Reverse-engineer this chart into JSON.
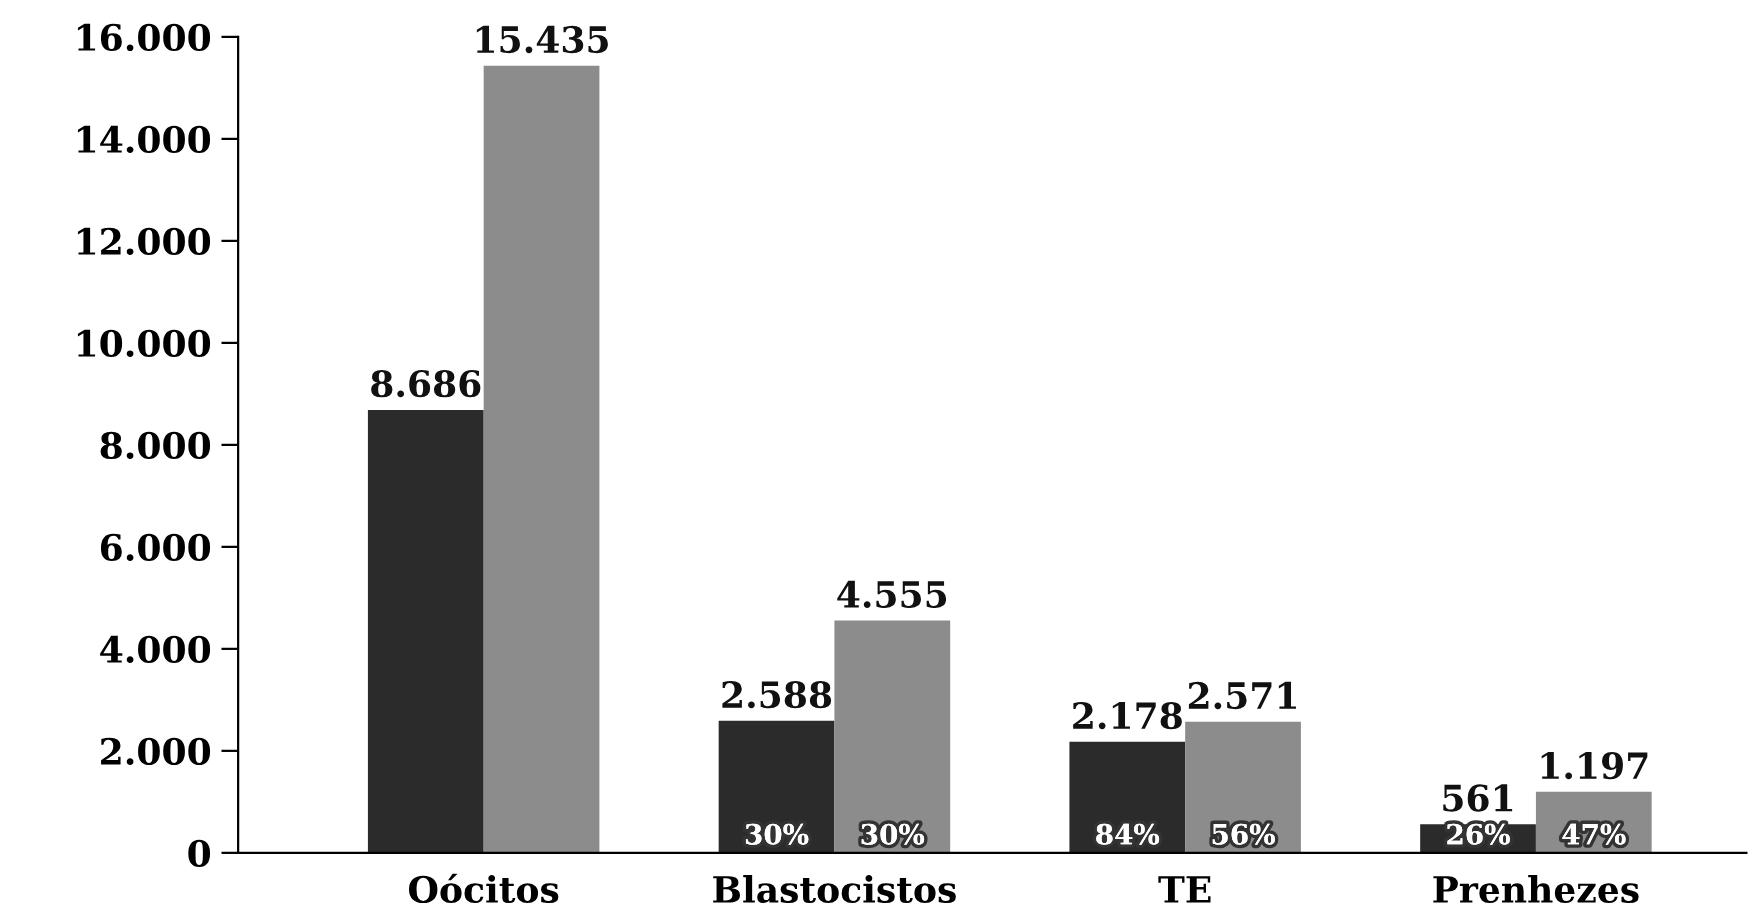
{
  "chart_data": {
    "type": "bar",
    "categories": [
      "Oócitos",
      "Blastocistos",
      "TE",
      "Prenhezes"
    ],
    "series": [
      {
        "color": "#2b2b2b",
        "values": [
          8686,
          2588,
          2178,
          561
        ],
        "value_labels": [
          "8.686",
          "2.588",
          "2.178",
          "561"
        ]
      },
      {
        "color": "#8c8c8c",
        "values": [
          15435,
          4555,
          2571,
          1197
        ],
        "value_labels": [
          "15.435",
          "4.555",
          "2.571",
          "1.197"
        ]
      }
    ],
    "ylim": [
      0,
      16000
    ],
    "yticks": [
      {
        "value": 0,
        "label": "0"
      },
      {
        "value": 2000,
        "label": "2.000"
      },
      {
        "value": 4000,
        "label": "4.000"
      },
      {
        "value": 6000,
        "label": "6.000"
      },
      {
        "value": 8000,
        "label": "8.000"
      },
      {
        "value": 10000,
        "label": "10.000"
      },
      {
        "value": 12000,
        "label": "12.000"
      },
      {
        "value": 14000,
        "label": "14.000"
      },
      {
        "value": 16000,
        "label": "16.000"
      }
    ],
    "annotations": [
      {
        "text": "30%",
        "x": "Blastocistos",
        "y": 0
      },
      {
        "text": "30%",
        "x": "Blastocistos",
        "y": 0
      },
      {
        "text": "84%",
        "x": "TE",
        "y": 0
      },
      {
        "text": "56%",
        "x": "TE",
        "y": 0
      },
      {
        "text": "26%",
        "x": "Prenhezes",
        "y": 0
      },
      {
        "text": "47%",
        "x": "Prenhezes",
        "y": 0
      }
    ]
  }
}
